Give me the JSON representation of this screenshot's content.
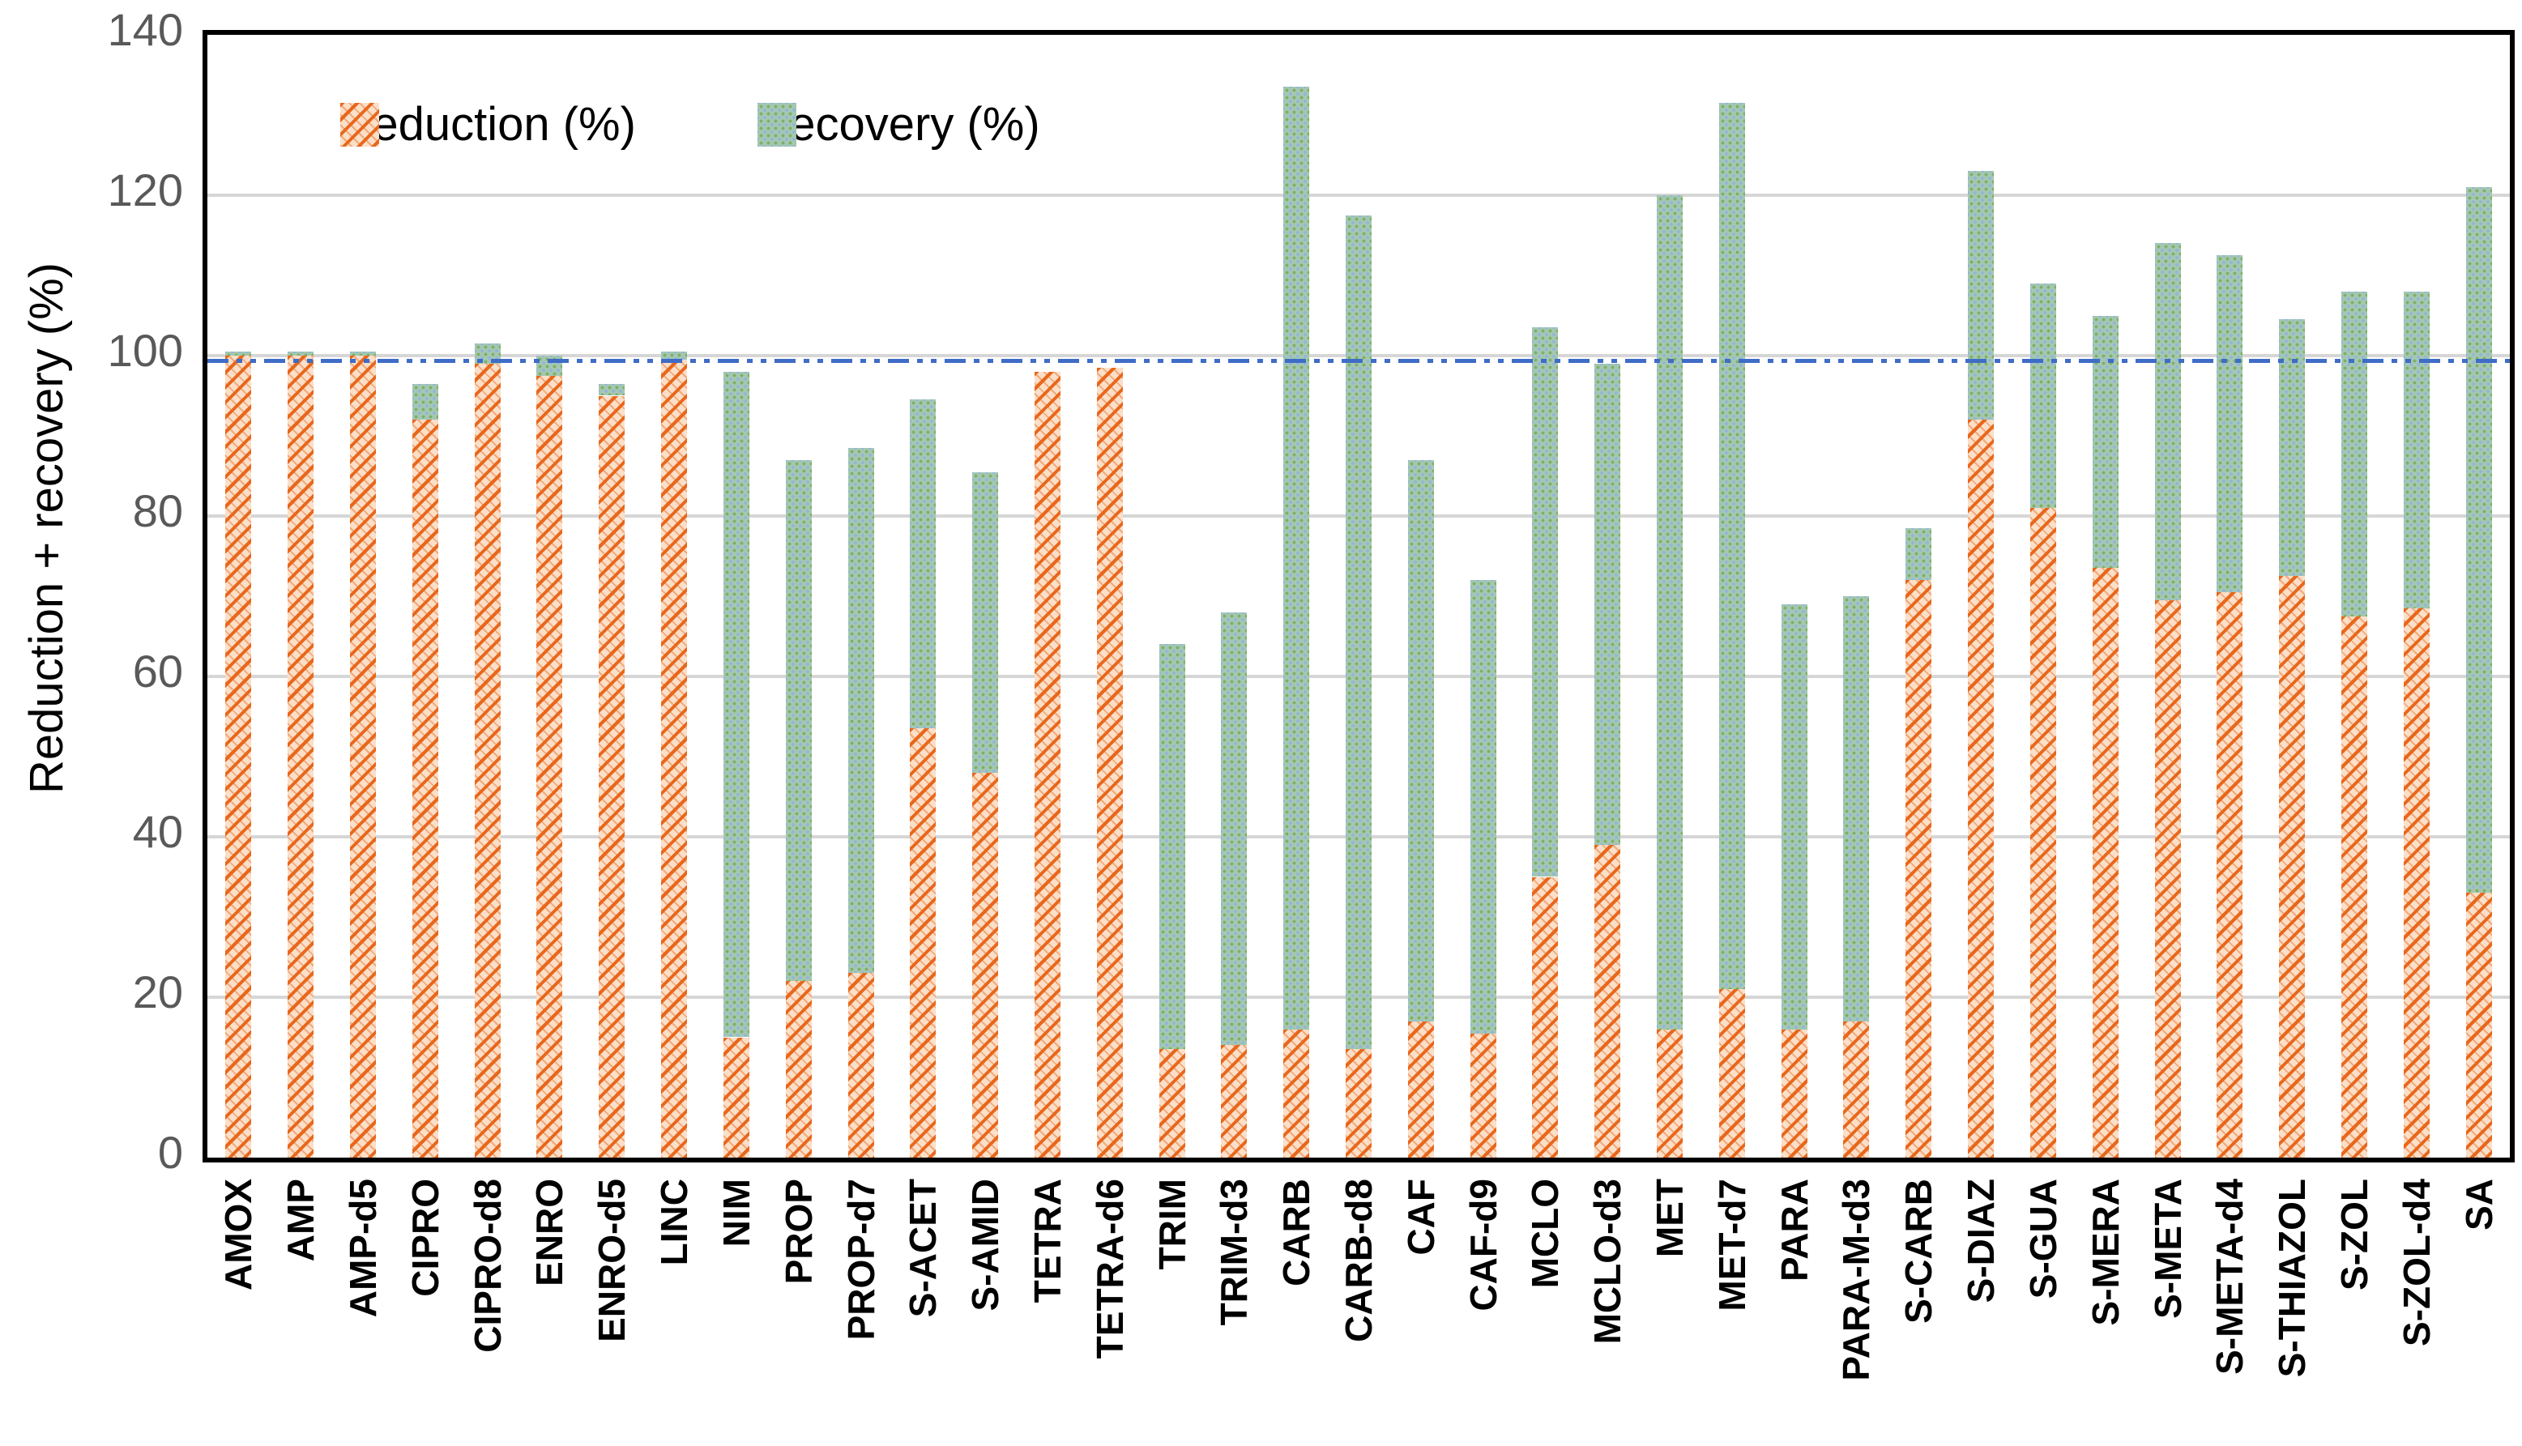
{
  "figure": {
    "y_axis_title": "Reduction + recovery (%)",
    "legend": [
      {
        "label": "reduction (%)",
        "series": "reduction",
        "swatch": "orange-hatch-swatch"
      },
      {
        "label": "recovery (%)",
        "series": "recovery",
        "swatch": "green-dot-swatch"
      }
    ],
    "colors": {
      "reduction_stripe": "#e8671c",
      "reduction_base": "#fbdfc8",
      "recovery_base": "#a5c7b0",
      "recovery_dot_green": "#7db069",
      "recovery_dot_blue": "#8fb7db",
      "gridline": "#d6d6d6",
      "reference_line": "#3e6cc7",
      "axis_border": "#000000",
      "tick_label": "#595959"
    }
  },
  "chart_data": {
    "type": "bar",
    "stacked": true,
    "title": "",
    "xlabel": "",
    "ylabel": "Reduction + recovery (%)",
    "ylim": [
      0,
      140
    ],
    "y_ticks": [
      0,
      20,
      40,
      60,
      80,
      100,
      120,
      140
    ],
    "gridlines": [
      20,
      40,
      60,
      80,
      100,
      120,
      140
    ],
    "reference_line_y": 100,
    "grid": true,
    "legend_position": "top-left-inside",
    "categories": [
      "AMOX",
      "AMP",
      "AMP-d5",
      "CIPRO",
      "CIPRO-d8",
      "ENRO",
      "ENRO-d5",
      "LINC",
      "NIM",
      "PROP",
      "PROP-d7",
      "S-ACET",
      "S-AMID",
      "TETRA",
      "TETRA-d6",
      "TRIM",
      "TRIM-d3",
      "CARB",
      "CARB-d8",
      "CAF",
      "CAF-d9",
      "MCLO",
      "MCLO-d3",
      "MET",
      "MET-d7",
      "PARA",
      "PARA-M-d3",
      "S-CARB",
      "S-DIAZ",
      "S-GUA",
      "S-MERA",
      "S-META",
      "S-META-d4",
      "S-THIAZOL",
      "S-ZOL",
      "S-ZOL-d4",
      "SA"
    ],
    "series": [
      {
        "name": "reduction (%)",
        "values": [
          100,
          100,
          100,
          92,
          99,
          97.5,
          95,
          99.5,
          15,
          22,
          23,
          53.5,
          48,
          98,
          98.5,
          13.5,
          14,
          16,
          13.5,
          17,
          15.5,
          35,
          39,
          16,
          21,
          16,
          17,
          72,
          92,
          81,
          73.5,
          69.5,
          70.5,
          72.5,
          67.5,
          68.5,
          33
        ]
      },
      {
        "name": "recovery (%)",
        "values": [
          0.5,
          0.5,
          0.5,
          4.5,
          2.5,
          2.5,
          1.5,
          1,
          83,
          65,
          65.5,
          41,
          37.5,
          0,
          0,
          50.5,
          54,
          117.5,
          104,
          70,
          56.5,
          68.5,
          60,
          104,
          110.5,
          53,
          53,
          6.5,
          31,
          28,
          31.5,
          44.5,
          42,
          32,
          40.5,
          39.5,
          88
        ]
      }
    ]
  }
}
